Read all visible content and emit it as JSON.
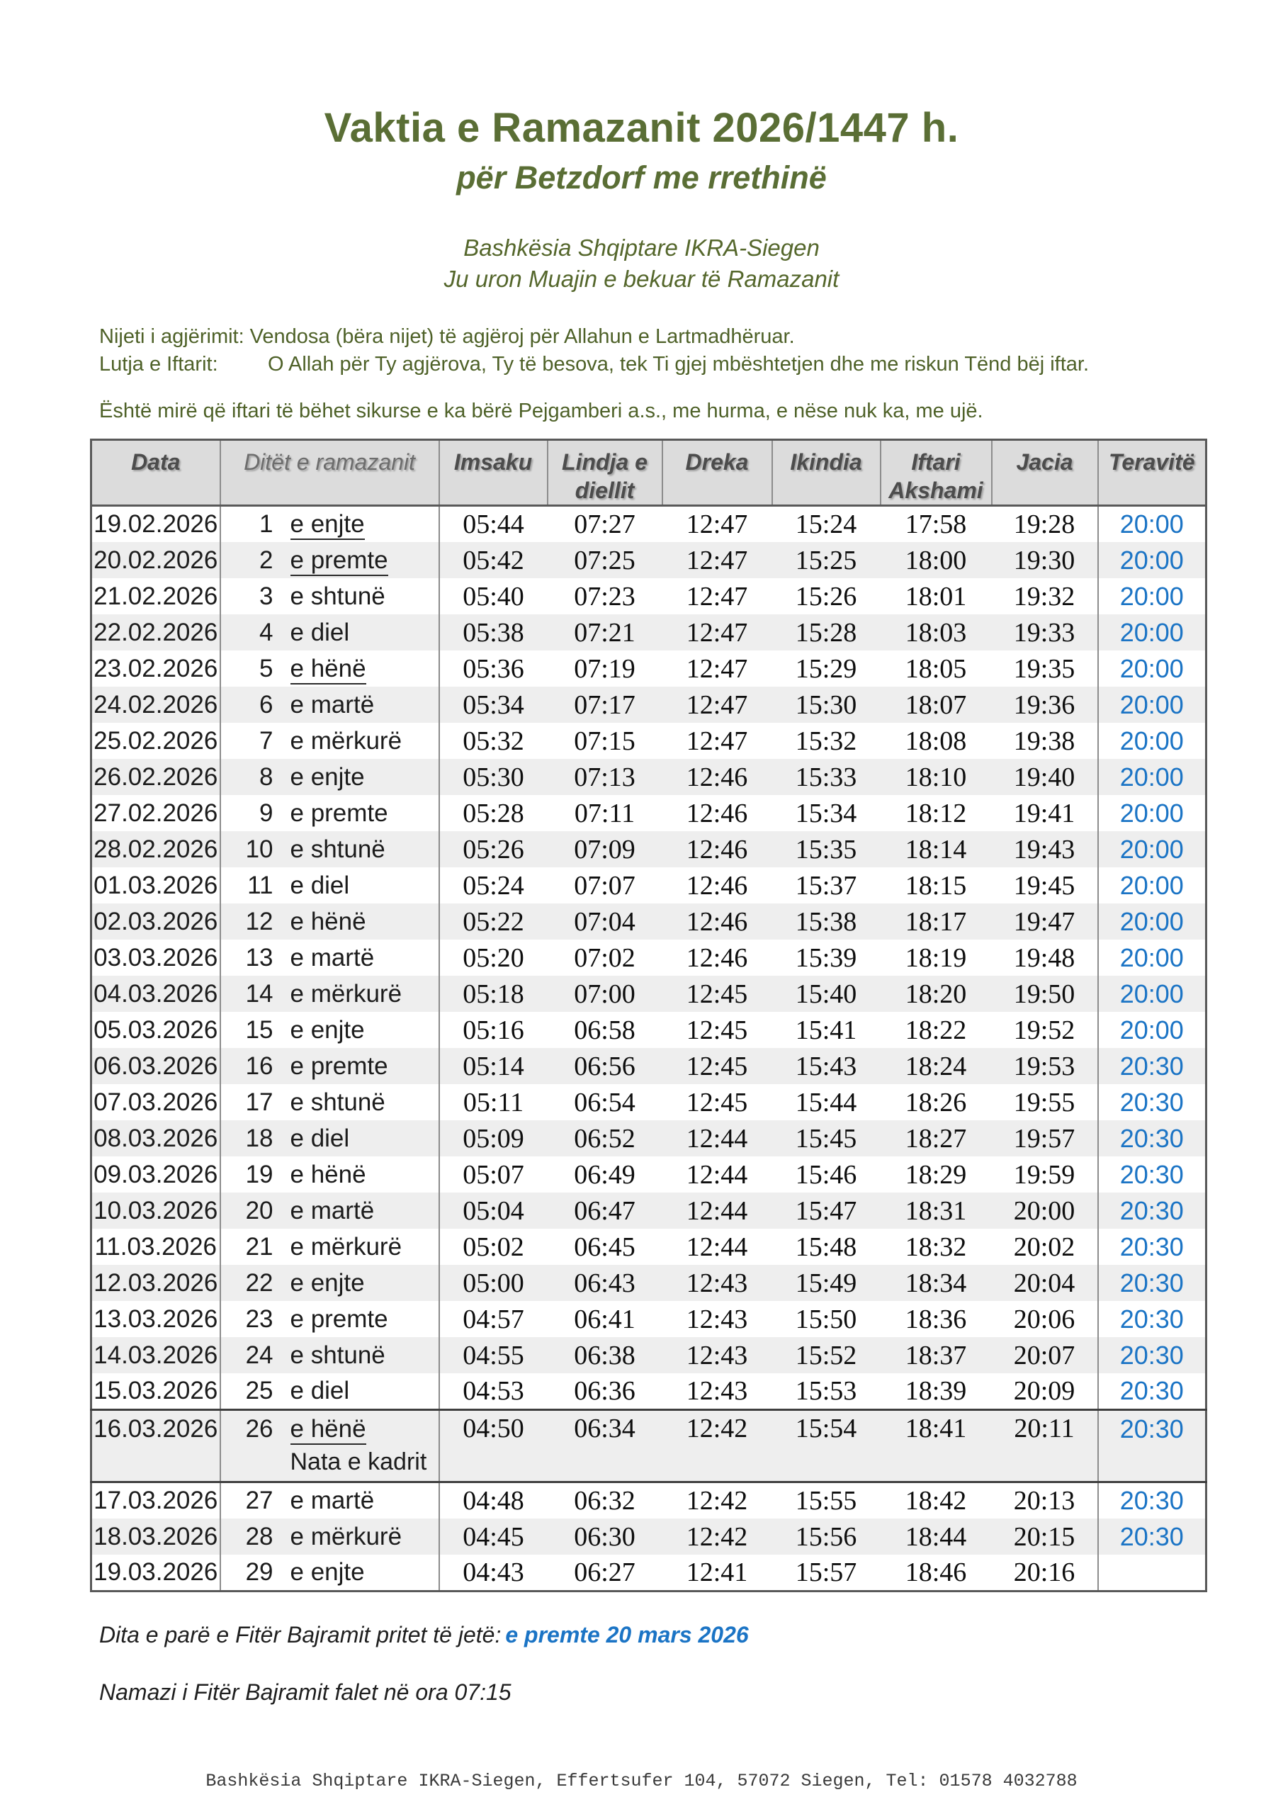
{
  "header": {
    "title": "Vaktia e Ramazanit 2026/1447 h.",
    "subtitle": "për Betzdorf me rrethinë",
    "org_line1": "Bashkësia Shqiptare IKRA-Siegen",
    "org_line2": "Ju uron Muajin e bekuar të Ramazanit"
  },
  "intro": {
    "nijeti_label": "Nijeti i agjërimit:",
    "nijeti_text": "Vendosa (bëra nijet) të agjëroj për Allahun e Lartmadhëruar.",
    "lutja_label": "Lutja e Iftarit:",
    "lutja_text": "O Allah për Ty agjërova, Ty të besova, tek Ti gjej mbështetjen dhe me riskun Tënd bëj iftar.",
    "note": "Është mirë që iftari të bëhet sikurse e ka bërë Pejgamberi a.s., me hurma, e nëse nuk ka, me ujë."
  },
  "table": {
    "headers": [
      "Data",
      "Ditët e ramazanit",
      "Imsaku",
      "Lindja e diellit",
      "Dreka",
      "Ikindia",
      "Iftari Akshami",
      "Jacia",
      "Teravitë"
    ],
    "rows": [
      {
        "date": "19.02.2026",
        "num": "1",
        "day": "e enjte",
        "underline": true,
        "times": [
          "05:44",
          "07:27",
          "12:47",
          "15:24",
          "17:58",
          "19:28"
        ],
        "teravite": "20:00"
      },
      {
        "date": "20.02.2026",
        "num": "2",
        "day": "e premte",
        "underline": true,
        "times": [
          "05:42",
          "07:25",
          "12:47",
          "15:25",
          "18:00",
          "19:30"
        ],
        "teravite": "20:00"
      },
      {
        "date": "21.02.2026",
        "num": "3",
        "day": "e shtunë",
        "underline": false,
        "times": [
          "05:40",
          "07:23",
          "12:47",
          "15:26",
          "18:01",
          "19:32"
        ],
        "teravite": "20:00"
      },
      {
        "date": "22.02.2026",
        "num": "4",
        "day": "e diel",
        "underline": false,
        "times": [
          "05:38",
          "07:21",
          "12:47",
          "15:28",
          "18:03",
          "19:33"
        ],
        "teravite": "20:00"
      },
      {
        "date": "23.02.2026",
        "num": "5",
        "day": "e hënë",
        "underline": true,
        "times": [
          "05:36",
          "07:19",
          "12:47",
          "15:29",
          "18:05",
          "19:35"
        ],
        "teravite": "20:00"
      },
      {
        "date": "24.02.2026",
        "num": "6",
        "day": "e martë",
        "underline": false,
        "times": [
          "05:34",
          "07:17",
          "12:47",
          "15:30",
          "18:07",
          "19:36"
        ],
        "teravite": "20:00"
      },
      {
        "date": "25.02.2026",
        "num": "7",
        "day": "e mërkurë",
        "underline": false,
        "times": [
          "05:32",
          "07:15",
          "12:47",
          "15:32",
          "18:08",
          "19:38"
        ],
        "teravite": "20:00"
      },
      {
        "date": "26.02.2026",
        "num": "8",
        "day": "e enjte",
        "underline": false,
        "times": [
          "05:30",
          "07:13",
          "12:46",
          "15:33",
          "18:10",
          "19:40"
        ],
        "teravite": "20:00"
      },
      {
        "date": "27.02.2026",
        "num": "9",
        "day": "e premte",
        "underline": false,
        "times": [
          "05:28",
          "07:11",
          "12:46",
          "15:34",
          "18:12",
          "19:41"
        ],
        "teravite": "20:00"
      },
      {
        "date": "28.02.2026",
        "num": "10",
        "day": "e shtunë",
        "underline": false,
        "times": [
          "05:26",
          "07:09",
          "12:46",
          "15:35",
          "18:14",
          "19:43"
        ],
        "teravite": "20:00"
      },
      {
        "date": "01.03.2026",
        "num": "11",
        "day": "e diel",
        "underline": false,
        "times": [
          "05:24",
          "07:07",
          "12:46",
          "15:37",
          "18:15",
          "19:45"
        ],
        "teravite": "20:00"
      },
      {
        "date": "02.03.2026",
        "num": "12",
        "day": "e hënë",
        "underline": false,
        "times": [
          "05:22",
          "07:04",
          "12:46",
          "15:38",
          "18:17",
          "19:47"
        ],
        "teravite": "20:00"
      },
      {
        "date": "03.03.2026",
        "num": "13",
        "day": "e martë",
        "underline": false,
        "times": [
          "05:20",
          "07:02",
          "12:46",
          "15:39",
          "18:19",
          "19:48"
        ],
        "teravite": "20:00"
      },
      {
        "date": "04.03.2026",
        "num": "14",
        "day": "e mërkurë",
        "underline": false,
        "times": [
          "05:18",
          "07:00",
          "12:45",
          "15:40",
          "18:20",
          "19:50"
        ],
        "teravite": "20:00"
      },
      {
        "date": "05.03.2026",
        "num": "15",
        "day": "e enjte",
        "underline": false,
        "times": [
          "05:16",
          "06:58",
          "12:45",
          "15:41",
          "18:22",
          "19:52"
        ],
        "teravite": "20:00"
      },
      {
        "date": "06.03.2026",
        "num": "16",
        "day": "e premte",
        "underline": false,
        "times": [
          "05:14",
          "06:56",
          "12:45",
          "15:43",
          "18:24",
          "19:53"
        ],
        "teravite": "20:30"
      },
      {
        "date": "07.03.2026",
        "num": "17",
        "day": "e shtunë",
        "underline": false,
        "times": [
          "05:11",
          "06:54",
          "12:45",
          "15:44",
          "18:26",
          "19:55"
        ],
        "teravite": "20:30"
      },
      {
        "date": "08.03.2026",
        "num": "18",
        "day": "e diel",
        "underline": false,
        "times": [
          "05:09",
          "06:52",
          "12:44",
          "15:45",
          "18:27",
          "19:57"
        ],
        "teravite": "20:30"
      },
      {
        "date": "09.03.2026",
        "num": "19",
        "day": "e hënë",
        "underline": false,
        "times": [
          "05:07",
          "06:49",
          "12:44",
          "15:46",
          "18:29",
          "19:59"
        ],
        "teravite": "20:30"
      },
      {
        "date": "10.03.2026",
        "num": "20",
        "day": "e martë",
        "underline": false,
        "times": [
          "05:04",
          "06:47",
          "12:44",
          "15:47",
          "18:31",
          "20:00"
        ],
        "teravite": "20:30"
      },
      {
        "date": "11.03.2026",
        "num": "21",
        "day": "e mërkurë",
        "underline": false,
        "times": [
          "05:02",
          "06:45",
          "12:44",
          "15:48",
          "18:32",
          "20:02"
        ],
        "teravite": "20:30"
      },
      {
        "date": "12.03.2026",
        "num": "22",
        "day": "e enjte",
        "underline": false,
        "times": [
          "05:00",
          "06:43",
          "12:43",
          "15:49",
          "18:34",
          "20:04"
        ],
        "teravite": "20:30"
      },
      {
        "date": "13.03.2026",
        "num": "23",
        "day": "e premte",
        "underline": false,
        "times": [
          "04:57",
          "06:41",
          "12:43",
          "15:50",
          "18:36",
          "20:06"
        ],
        "teravite": "20:30"
      },
      {
        "date": "14.03.2026",
        "num": "24",
        "day": "e shtunë",
        "underline": false,
        "times": [
          "04:55",
          "06:38",
          "12:43",
          "15:52",
          "18:37",
          "20:07"
        ],
        "teravite": "20:30"
      },
      {
        "date": "15.03.2026",
        "num": "25",
        "day": "e diel",
        "underline": false,
        "times": [
          "04:53",
          "06:36",
          "12:43",
          "15:53",
          "18:39",
          "20:09"
        ],
        "teravite": "20:30"
      },
      {
        "date": "16.03.2026",
        "num": "26",
        "day": "e hënë",
        "underline": true,
        "note": "Nata e kadrit",
        "times": [
          "04:50",
          "06:34",
          "12:42",
          "15:54",
          "18:41",
          "20:11"
        ],
        "teravite": "20:30"
      },
      {
        "date": "17.03.2026",
        "num": "27",
        "day": "e martë",
        "underline": false,
        "times": [
          "04:48",
          "06:32",
          "12:42",
          "15:55",
          "18:42",
          "20:13"
        ],
        "teravite": "20:30"
      },
      {
        "date": "18.03.2026",
        "num": "28",
        "day": "e mërkurë",
        "underline": false,
        "times": [
          "04:45",
          "06:30",
          "12:42",
          "15:56",
          "18:44",
          "20:15"
        ],
        "teravite": "20:30"
      },
      {
        "date": "19.03.2026",
        "num": "29",
        "day": "e enjte",
        "underline": false,
        "times": [
          "04:43",
          "06:27",
          "12:41",
          "15:57",
          "18:46",
          "20:16"
        ],
        "teravite": ""
      }
    ]
  },
  "footer": {
    "bajram_label": "Dita e parë e Fitër Bajramit pritet të jetë:",
    "bajram_value": "e premte 20 mars 2026",
    "namazi": "Namazi i Fitër Bajramit falet në ora 07:15",
    "contact": "Bashkësia Shqiptare IKRA-Siegen, Effertsufer 104, 57072 Siegen, Tel: 01578 4032788"
  },
  "colors": {
    "title_green": "#5a6e35",
    "intro_green": "#4e6128",
    "accent_blue": "#1b74c5",
    "header_bg": "#dcdcdc",
    "stripe_gray": "#eeeeee"
  }
}
